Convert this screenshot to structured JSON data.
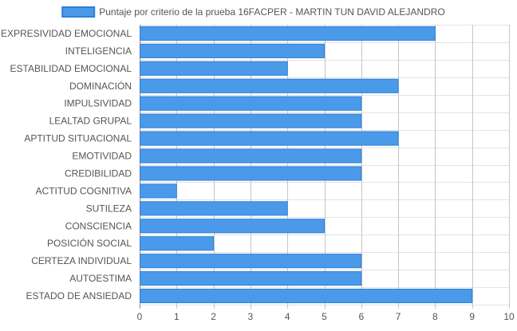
{
  "chart_data": {
    "type": "bar",
    "orientation": "horizontal",
    "legend": {
      "position": "top-center"
    },
    "series": [
      {
        "name": "Puntaje por criterio de la prueba 16FACPER - MARTIN TUN DAVID ALEJANDRO",
        "color": "#4a9ae9",
        "border_color": "#2f7fd6"
      }
    ],
    "categories": [
      "EXPRESIVIDAD EMOCIONAL",
      "INTELIGENCIA",
      "ESTABILIDAD EMOCIONAL",
      "DOMINACIÓN",
      "IMPULSIVIDAD",
      "LEALTAD GRUPAL",
      "APTITUD SITUACIONAL",
      "EMOTIVIDAD",
      "CREDIBILIDAD",
      "ACTITUD COGNITIVA",
      "SUTILEZA",
      "CONSCIENCIA",
      "POSICIÓN SOCIAL",
      "CERTEZA INDIVIDUAL",
      "AUTOESTIMA",
      "ESTADO DE ANSIEDAD"
    ],
    "values": [
      8,
      5,
      4,
      7,
      6,
      6,
      7,
      6,
      6,
      1,
      4,
      5,
      2,
      6,
      6,
      9
    ],
    "xlim": [
      0,
      10
    ],
    "xticks": [
      "0",
      "1",
      "2",
      "3",
      "4",
      "5",
      "6",
      "7",
      "8",
      "9",
      "10"
    ],
    "grid": true
  }
}
